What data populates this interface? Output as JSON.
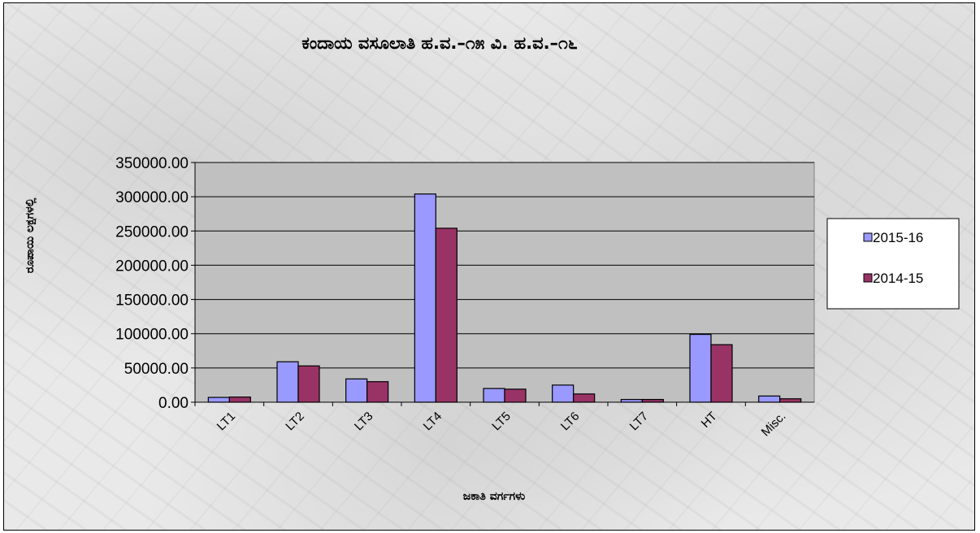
{
  "chart_data": {
    "type": "bar",
    "title": "ಕಂದಾಯ ವಸೂಲಾತಿ ಹ.ವ.–೧೫ ವಿ. ಹ.ವ.–೧೬",
    "xlabel": "ಜಕಾತಿ ವರ್ಗಗಳು",
    "ylabel": "ರೂಪಾಯಿ ಲಕ್ಷಗಳಲ್ಲಿ",
    "categories": [
      "LT1",
      "LT2",
      "LT3",
      "LT4",
      "LT5",
      "LT6",
      "LT7",
      "HT",
      "Misc."
    ],
    "series": [
      {
        "name": "2015-16",
        "color": "#9999ff",
        "values": [
          7000,
          59000,
          34000,
          304000,
          20000,
          25000,
          4000,
          99000,
          9000
        ]
      },
      {
        "name": "2014-15",
        "color": "#993366",
        "values": [
          7500,
          53000,
          30000,
          254000,
          19000,
          12000,
          4000,
          84000,
          5000
        ]
      }
    ],
    "ylim": [
      0,
      350000
    ],
    "yticks": [
      "0.00",
      "50000.00",
      "100000.00",
      "150000.00",
      "200000.00",
      "250000.00",
      "300000.00",
      "350000.00"
    ],
    "grid": true,
    "plot_background": "#c0c0c0",
    "legend": "right"
  }
}
